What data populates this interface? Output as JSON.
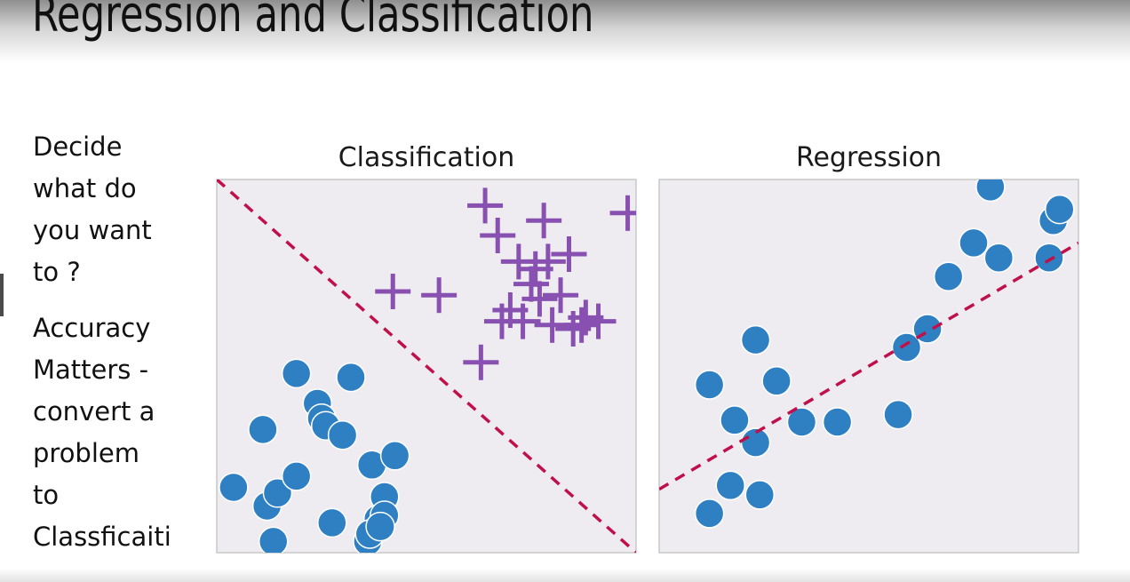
{
  "slide": {
    "title": "Regression and Classification",
    "bullets": [
      "Decide\nwhat do\nyou want\nto ?",
      "Accuracy\nMatters -\nconvert a\nproblem\nto\nClassficaiti"
    ]
  },
  "colors": {
    "plot_background": "#eeecf0",
    "plot_border": "#c8c8c8",
    "circle_marker": "#2f80c3",
    "plus_marker": "#8850b0",
    "dashed_line": "#c0104a"
  },
  "chart_data": [
    {
      "type": "scatter",
      "title": "Classification",
      "xlabel": "",
      "ylabel": "",
      "xlim": [
        0,
        10
      ],
      "ylim": [
        0,
        10
      ],
      "grid": false,
      "series": [
        {
          "marker": "circle",
          "points": [
            [
              0.4,
              1.75
            ],
            [
              1.1,
              3.3
            ],
            [
              1.2,
              1.25
            ],
            [
              1.45,
              1.6
            ],
            [
              1.35,
              0.3
            ],
            [
              1.9,
              2.05
            ],
            [
              1.9,
              4.8
            ],
            [
              2.4,
              4.0
            ],
            [
              2.5,
              3.6
            ],
            [
              2.6,
              3.4
            ],
            [
              3.0,
              3.15
            ],
            [
              2.75,
              0.8
            ],
            [
              3.2,
              4.7
            ],
            [
              3.7,
              2.35
            ],
            [
              3.85,
              0.9
            ],
            [
              3.6,
              0.3
            ],
            [
              3.65,
              0.5
            ],
            [
              4.0,
              1.5
            ],
            [
              4.0,
              1.0
            ],
            [
              3.9,
              0.7
            ],
            [
              4.25,
              2.6
            ]
          ]
        },
        {
          "marker": "plus",
          "points": [
            [
              6.4,
              9.3
            ],
            [
              6.7,
              8.5
            ],
            [
              7.8,
              8.9
            ],
            [
              8.4,
              8.0
            ],
            [
              9.8,
              9.1
            ],
            [
              7.2,
              7.8
            ],
            [
              7.6,
              7.6
            ],
            [
              7.5,
              7.2
            ],
            [
              7.9,
              7.8
            ],
            [
              7.7,
              6.8
            ],
            [
              8.2,
              6.9
            ],
            [
              7.0,
              6.5
            ],
            [
              7.3,
              6.2
            ],
            [
              8.0,
              6.1
            ],
            [
              8.5,
              6.0
            ],
            [
              8.7,
              6.1
            ],
            [
              8.8,
              6.3
            ],
            [
              9.1,
              6.2
            ],
            [
              4.2,
              7.0
            ],
            [
              5.3,
              6.9
            ],
            [
              6.3,
              5.1
            ],
            [
              6.8,
              6.2
            ]
          ]
        }
      ],
      "boundary": {
        "style": "dashed",
        "from": [
          0,
          10
        ],
        "to": [
          10,
          0
        ]
      }
    },
    {
      "type": "scatter",
      "title": "Regression",
      "xlabel": "",
      "ylabel": "",
      "xlim": [
        0,
        10
      ],
      "ylim": [
        0,
        10
      ],
      "grid": false,
      "series": [
        {
          "marker": "circle",
          "points": [
            [
              1.2,
              1.05
            ],
            [
              1.7,
              1.8
            ],
            [
              2.4,
              1.55
            ],
            [
              2.3,
              2.95
            ],
            [
              1.8,
              3.55
            ],
            [
              1.2,
              4.5
            ],
            [
              2.3,
              5.7
            ],
            [
              2.8,
              4.6
            ],
            [
              3.4,
              3.5
            ],
            [
              4.25,
              3.5
            ],
            [
              5.7,
              3.7
            ],
            [
              5.9,
              5.5
            ],
            [
              6.4,
              6.0
            ],
            [
              6.9,
              7.4
            ],
            [
              7.5,
              8.3
            ],
            [
              8.1,
              7.9
            ],
            [
              7.9,
              9.8
            ],
            [
              9.3,
              7.9
            ],
            [
              9.4,
              8.9
            ],
            [
              9.55,
              9.2
            ]
          ]
        }
      ],
      "fit_line": {
        "style": "dashed",
        "from": [
          0,
          1.7
        ],
        "to": [
          10,
          8.3
        ]
      }
    }
  ]
}
